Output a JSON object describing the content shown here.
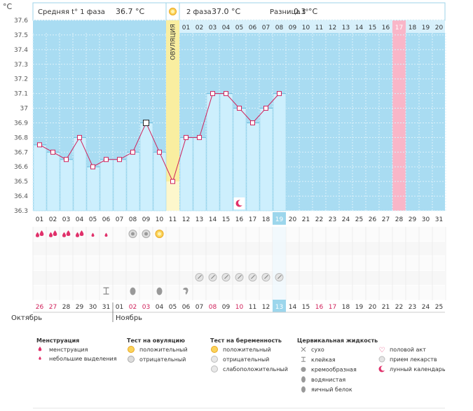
{
  "header": {
    "unit": "°C",
    "phase1_label": "Средняя t° 1 фаза",
    "phase1_value": "36.7 °C",
    "phase2_label": "2 фаза",
    "phase2_value": "37.0 °C",
    "diff_label": "Разница t°",
    "diff_value": "0.3 °C"
  },
  "ovulation_label": "ОВУЛЯЦИЯ",
  "colors": {
    "sky": "#a9dcf2",
    "sky_grid": "#c9ebf9",
    "bar": "#cdeffd",
    "bar_edge": "#8fd0ea",
    "line": "#d0205a",
    "ovulation": "#f9eea0",
    "ovulation_light": "#fdf7cc",
    "pink": "#f9b6c8",
    "blue_hl": "#9cd6ec"
  },
  "cycle_days": [
    "01",
    "02",
    "03",
    "04",
    "05",
    "06",
    "07",
    "08",
    "09",
    "10",
    "11",
    "12",
    "13",
    "14",
    "15",
    "16",
    "17",
    "18",
    "19",
    "20",
    "21",
    "22",
    "23",
    "24",
    "25",
    "26",
    "27",
    "28",
    "29",
    "30",
    "31"
  ],
  "phase2_days": [
    "01",
    "02",
    "03",
    "04",
    "05",
    "06",
    "07",
    "08",
    "09",
    "10",
    "11",
    "12",
    "13",
    "14",
    "15",
    "16",
    "17",
    "18",
    "19",
    "20"
  ],
  "dates": [
    "26",
    "27",
    "28",
    "29",
    "30",
    "31",
    "01",
    "02",
    "03",
    "04",
    "05",
    "06",
    "07",
    "08",
    "09",
    "10",
    "11",
    "12",
    "13",
    "14",
    "15",
    "16",
    "17",
    "18",
    "19",
    "20",
    "21",
    "22",
    "23",
    "24",
    "25"
  ],
  "red_date_indices": [
    0,
    1,
    7,
    8,
    13,
    15,
    21,
    22
  ],
  "highlight_cycle_day": 19,
  "pink_phase2_day": 17,
  "ovulation_cycle_day": 11,
  "months": {
    "first": "Октябрь",
    "second": "Ноябрь"
  },
  "chart_data": {
    "type": "line",
    "x": [
      1,
      2,
      3,
      4,
      5,
      6,
      7,
      8,
      9,
      10,
      11,
      12,
      13,
      14,
      15,
      16,
      17,
      18,
      19
    ],
    "values": [
      36.75,
      36.7,
      36.65,
      36.8,
      36.6,
      36.65,
      36.65,
      36.7,
      36.9,
      36.7,
      36.5,
      36.8,
      36.8,
      37.1,
      37.1,
      37.0,
      36.9,
      37.0,
      37.1
    ],
    "ylim": [
      36.3,
      37.6
    ],
    "yticks": [
      "36.3",
      "36.4",
      "36.5",
      "36.6",
      "36.7",
      "36.8",
      "36.9",
      "37",
      "37.1",
      "37.2",
      "37.3",
      "37.4",
      "37.5",
      "37.6"
    ],
    "grid": true
  },
  "markers": {
    "moon_day": 16,
    "mens_big_days": [
      1,
      2,
      3,
      4
    ],
    "mens_small_days": [
      5,
      6
    ],
    "ov_negative_days": [
      8,
      9
    ],
    "ov_positive_day": 10,
    "preg_weak_days": [
      13,
      14,
      15,
      16,
      17,
      18,
      19
    ],
    "fluid_sticky_day": 6,
    "fluid_eggwhite_days": [
      8,
      10
    ],
    "fluid_creamy_day": 12
  },
  "legend": {
    "menstruation": {
      "title": "Менструация",
      "items": [
        "менструация",
        "небольшие выделения"
      ]
    },
    "ovulation_test": {
      "title": "Тест на овуляцию",
      "items": [
        "положительный",
        "отрицательный"
      ]
    },
    "pregnancy_test": {
      "title": "Тест на беременность",
      "items": [
        "положительный",
        "отрицательный",
        "слабоположительный"
      ]
    },
    "cervical": {
      "title": "Цервикальная жидкость",
      "items": [
        "сухо",
        "клейкая",
        "кремообразная",
        "водянистая",
        "яичный белок"
      ]
    },
    "other": {
      "items": [
        "половой акт",
        "прием лекарств",
        "лунный календарь"
      ]
    }
  }
}
